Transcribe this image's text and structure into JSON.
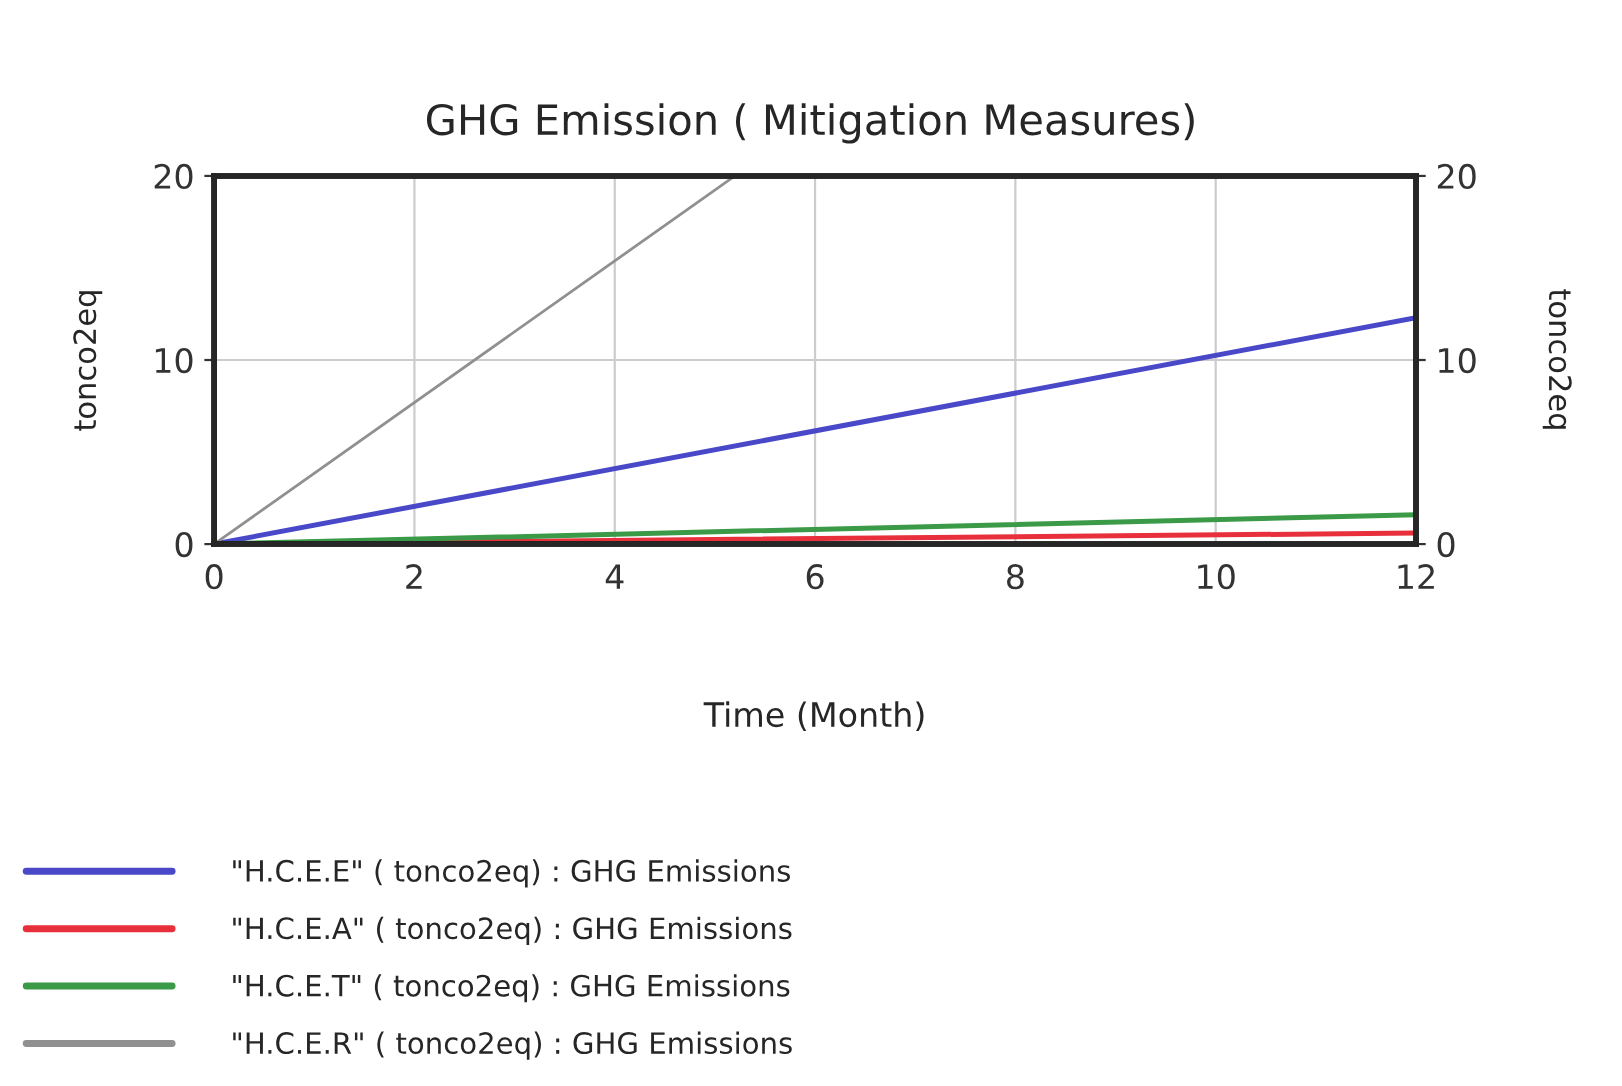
{
  "chart_data": {
    "type": "line",
    "title": "GHG Emission ( Mitigation Measures)",
    "xlabel": "Time (Month)",
    "ylabel": "tonco2eq",
    "y2label": "tonco2eq",
    "xlim": [
      0,
      12
    ],
    "xticks": [
      0,
      2,
      4,
      6,
      8,
      10,
      12
    ],
    "ylim": [
      0,
      20
    ],
    "yticks": [
      0,
      10,
      20
    ],
    "y2lim": [
      0,
      20
    ],
    "y2ticks": [
      0,
      10,
      20
    ],
    "grid": true,
    "legend": "bottom",
    "marker": "none",
    "line_style": "solid",
    "series": [
      {
        "name": "\"H.C.E.E\" ( tonco2eq) : GHG Emissions",
        "color": "#4848c8",
        "x": [
          0,
          12
        ],
        "values": [
          0,
          12.3
        ]
      },
      {
        "name": "\"H.C.E.A\" ( tonco2eq) : GHG Emissions",
        "color": "#e8303c",
        "x": [
          0,
          12
        ],
        "values": [
          0,
          0.6
        ]
      },
      {
        "name": "\"H.C.E.T\" ( tonco2eq) : GHG Emissions",
        "color": "#3a9a48",
        "x": [
          0,
          12
        ],
        "values": [
          0,
          1.6
        ]
      },
      {
        "name": "\"H.C.E.R\" ( tonco2eq) : GHG Emissions",
        "color": "#909090",
        "x": [
          0,
          5.2
        ],
        "values": [
          0,
          20
        ]
      }
    ]
  }
}
